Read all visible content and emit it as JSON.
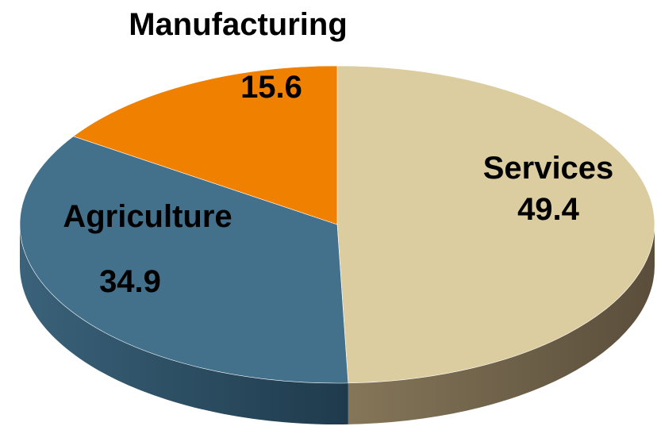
{
  "chart_data": {
    "type": "pie",
    "style": "3d",
    "slices": [
      {
        "name": "Services",
        "value": 49.4,
        "label": "Services",
        "value_label": "49.4",
        "color": "#dccda0",
        "side_color": "#6e6248"
      },
      {
        "name": "Agriculture",
        "value": 34.9,
        "label": "Agriculture",
        "value_label": "34.9",
        "color": "#43708a",
        "side_color": "#27455a"
      },
      {
        "name": "Manufacturing",
        "value": 15.6,
        "label": "Manufacturing",
        "value_label": "15.6",
        "color": "#f08000",
        "side_color": "#a85600"
      }
    ],
    "title": "",
    "legend": "none"
  }
}
